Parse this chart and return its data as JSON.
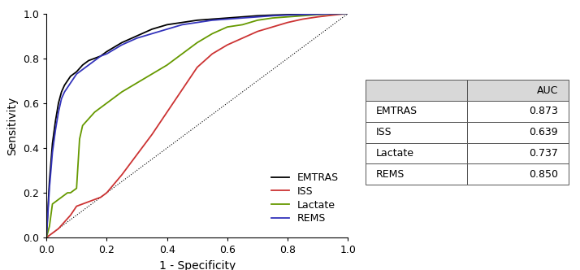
{
  "title": "",
  "xlabel": "1 - Specificity",
  "ylabel": "Sensitivity",
  "xlim": [
    0,
    1.0
  ],
  "ylim": [
    0,
    1.0
  ],
  "xticks": [
    0.0,
    0.2,
    0.4,
    0.6,
    0.8,
    1.0
  ],
  "yticks": [
    0.0,
    0.2,
    0.4,
    0.6,
    0.8,
    1.0
  ],
  "curves": {
    "EMTRAS": {
      "color": "#000000",
      "auc": 0.873,
      "x": [
        0.0,
        0.01,
        0.02,
        0.03,
        0.04,
        0.05,
        0.06,
        0.07,
        0.08,
        0.09,
        0.1,
        0.12,
        0.14,
        0.16,
        0.18,
        0.2,
        0.25,
        0.3,
        0.35,
        0.4,
        0.45,
        0.5,
        0.55,
        0.6,
        0.65,
        0.7,
        0.75,
        0.8,
        0.85,
        0.9,
        0.95,
        1.0
      ],
      "y": [
        0.0,
        0.25,
        0.42,
        0.52,
        0.6,
        0.65,
        0.68,
        0.7,
        0.72,
        0.73,
        0.74,
        0.77,
        0.79,
        0.8,
        0.81,
        0.83,
        0.87,
        0.9,
        0.93,
        0.95,
        0.96,
        0.97,
        0.975,
        0.98,
        0.985,
        0.99,
        0.993,
        0.995,
        0.997,
        0.998,
        0.999,
        1.0
      ]
    },
    "ISS": {
      "color": "#cc3333",
      "auc": 0.639,
      "x": [
        0.0,
        0.01,
        0.02,
        0.04,
        0.06,
        0.08,
        0.1,
        0.12,
        0.14,
        0.16,
        0.18,
        0.2,
        0.25,
        0.3,
        0.35,
        0.4,
        0.45,
        0.5,
        0.55,
        0.6,
        0.65,
        0.7,
        0.75,
        0.8,
        0.85,
        0.9,
        0.95,
        1.0
      ],
      "y": [
        0.0,
        0.01,
        0.02,
        0.04,
        0.07,
        0.1,
        0.14,
        0.15,
        0.16,
        0.17,
        0.18,
        0.2,
        0.28,
        0.37,
        0.46,
        0.56,
        0.66,
        0.76,
        0.82,
        0.86,
        0.89,
        0.92,
        0.94,
        0.96,
        0.975,
        0.985,
        0.993,
        1.0
      ]
    },
    "Lactate": {
      "color": "#669900",
      "auc": 0.737,
      "x": [
        0.0,
        0.01,
        0.02,
        0.03,
        0.04,
        0.05,
        0.06,
        0.07,
        0.08,
        0.09,
        0.1,
        0.11,
        0.12,
        0.14,
        0.16,
        0.18,
        0.2,
        0.25,
        0.3,
        0.35,
        0.4,
        0.45,
        0.5,
        0.55,
        0.6,
        0.65,
        0.7,
        0.75,
        0.8,
        0.85,
        0.9,
        0.95,
        1.0
      ],
      "y": [
        0.0,
        0.05,
        0.15,
        0.16,
        0.17,
        0.18,
        0.19,
        0.2,
        0.2,
        0.21,
        0.22,
        0.44,
        0.5,
        0.53,
        0.56,
        0.58,
        0.6,
        0.65,
        0.69,
        0.73,
        0.77,
        0.82,
        0.87,
        0.91,
        0.94,
        0.95,
        0.97,
        0.98,
        0.985,
        0.99,
        0.995,
        0.998,
        1.0
      ]
    },
    "REMS": {
      "color": "#3333bb",
      "auc": 0.85,
      "x": [
        0.0,
        0.01,
        0.02,
        0.03,
        0.04,
        0.05,
        0.06,
        0.07,
        0.08,
        0.09,
        0.1,
        0.12,
        0.14,
        0.16,
        0.18,
        0.2,
        0.25,
        0.3,
        0.35,
        0.4,
        0.45,
        0.5,
        0.55,
        0.6,
        0.65,
        0.7,
        0.75,
        0.8,
        0.85,
        0.9,
        0.95,
        1.0
      ],
      "y": [
        0.0,
        0.22,
        0.38,
        0.48,
        0.56,
        0.62,
        0.65,
        0.67,
        0.69,
        0.71,
        0.73,
        0.75,
        0.77,
        0.79,
        0.81,
        0.82,
        0.86,
        0.89,
        0.91,
        0.93,
        0.95,
        0.96,
        0.97,
        0.975,
        0.98,
        0.985,
        0.99,
        0.993,
        0.995,
        0.997,
        0.999,
        1.0
      ]
    }
  },
  "table": {
    "col_headers": [
      "",
      "AUC"
    ],
    "rows": [
      [
        "EMTRAS",
        "0.873"
      ],
      [
        "ISS",
        "0.639"
      ],
      [
        "Lactate",
        "0.737"
      ],
      [
        "REMS",
        "0.850"
      ]
    ]
  },
  "background_color": "#ffffff",
  "axis_fontsize": 10,
  "tick_fontsize": 9,
  "legend_fontsize": 9,
  "table_fontsize": 9,
  "curve_order": [
    "EMTRAS",
    "ISS",
    "Lactate",
    "REMS"
  ]
}
